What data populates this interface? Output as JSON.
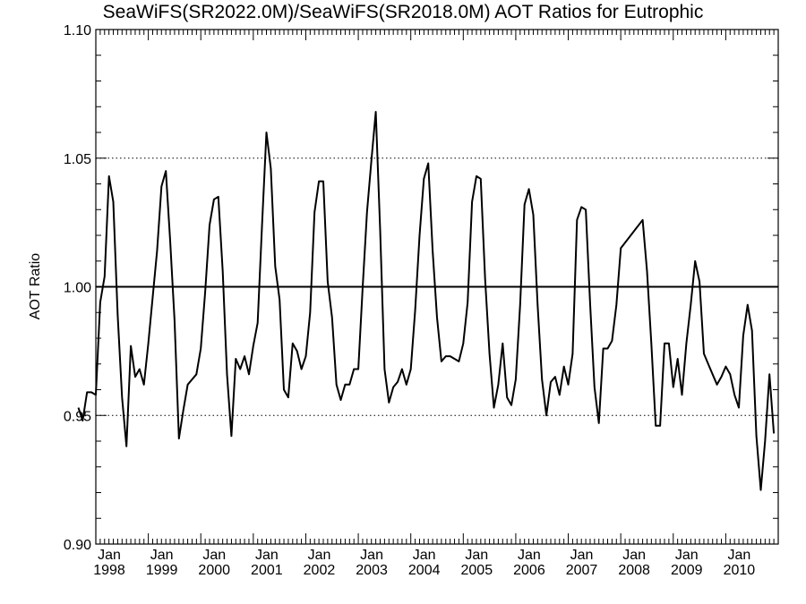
{
  "chart_data": {
    "type": "line",
    "title": "SeaWiFS(SR2022.0M)/SeaWiFS(SR2018.0M)  AOT Ratios for Eutrophic",
    "xlabel": "",
    "ylabel": "AOT Ratio",
    "ylim": [
      0.9,
      1.1
    ],
    "y_ticks": [
      "0.90",
      "0.95",
      "1.00",
      "1.05",
      "1.10"
    ],
    "x_range": [
      1998.0,
      2011.0
    ],
    "x_ticks": [
      {
        "month": "Jan",
        "year": "1998"
      },
      {
        "month": "Jan",
        "year": "1999"
      },
      {
        "month": "Jan",
        "year": "2000"
      },
      {
        "month": "Jan",
        "year": "2001"
      },
      {
        "month": "Jan",
        "year": "2002"
      },
      {
        "month": "Jan",
        "year": "2003"
      },
      {
        "month": "Jan",
        "year": "2004"
      },
      {
        "month": "Jan",
        "year": "2005"
      },
      {
        "month": "Jan",
        "year": "2006"
      },
      {
        "month": "Jan",
        "year": "2007"
      },
      {
        "month": "Jan",
        "year": "2008"
      },
      {
        "month": "Jan",
        "year": "2009"
      },
      {
        "month": "Jan",
        "year": "2010"
      }
    ],
    "reference_lines": [
      {
        "y": 1.0,
        "style": "solid"
      },
      {
        "y": 1.05,
        "style": "dotted"
      },
      {
        "y": 0.95,
        "style": "dotted"
      }
    ],
    "grid": false,
    "series": [
      {
        "x": [
          "1997-09",
          "1997-10",
          "1997-11",
          "1997-12",
          "1998-01",
          "1998-02",
          "1998-03",
          "1998-04",
          "1998-05",
          "1998-06",
          "1998-07",
          "1998-08",
          "1998-09",
          "1998-10",
          "1998-11",
          "1998-12",
          "1999-01",
          "1999-02",
          "1999-03",
          "1999-04",
          "1999-05",
          "1999-06",
          "1999-07",
          "1999-08",
          "1999-09",
          "1999-10",
          "1999-11",
          "1999-12",
          "2000-01",
          "2000-02",
          "2000-03",
          "2000-04",
          "2000-05",
          "2000-06",
          "2000-07",
          "2000-08",
          "2000-09",
          "2000-10",
          "2000-11",
          "2000-12",
          "2001-01",
          "2001-02",
          "2001-03",
          "2001-04",
          "2001-05",
          "2001-06",
          "2001-07",
          "2001-08",
          "2001-09",
          "2001-10",
          "2001-11",
          "2001-12",
          "2002-01",
          "2002-02",
          "2002-03",
          "2002-04",
          "2002-05",
          "2002-06",
          "2002-07",
          "2002-08",
          "2002-09",
          "2002-10",
          "2002-11",
          "2002-12",
          "2003-01",
          "2003-02",
          "2003-03",
          "2003-04",
          "2003-05",
          "2003-06",
          "2003-07",
          "2003-08",
          "2003-09",
          "2003-10",
          "2003-11",
          "2003-12",
          "2004-01",
          "2004-02",
          "2004-03",
          "2004-04",
          "2004-05",
          "2004-06",
          "2004-07",
          "2004-08",
          "2004-09",
          "2004-10",
          "2004-11",
          "2004-12",
          "2005-01",
          "2005-02",
          "2005-03",
          "2005-04",
          "2005-05",
          "2005-06",
          "2005-07",
          "2005-08",
          "2005-09",
          "2005-10",
          "2005-11",
          "2005-12",
          "2006-01",
          "2006-02",
          "2006-03",
          "2006-04",
          "2006-05",
          "2006-06",
          "2006-07",
          "2006-08",
          "2006-09",
          "2006-10",
          "2006-11",
          "2006-12",
          "2007-01",
          "2007-02",
          "2007-03",
          "2007-04",
          "2007-05",
          "2007-06",
          "2007-07",
          "2007-08",
          "2007-09",
          "2007-10",
          "2007-11",
          "2007-12",
          "2008-01",
          "2008-06",
          "2008-07",
          "2008-08",
          "2008-09",
          "2008-10",
          "2008-11",
          "2008-12",
          "2009-01",
          "2009-02",
          "2009-03",
          "2009-04",
          "2009-05",
          "2009-06",
          "2009-07",
          "2009-08",
          "2009-09",
          "2009-10",
          "2009-11",
          "2009-12",
          "2010-01",
          "2010-02",
          "2010-03",
          "2010-04",
          "2010-05",
          "2010-06",
          "2010-07",
          "2010-08",
          "2010-09",
          "2010-10",
          "2010-11",
          "2010-12"
        ],
        "y": [
          0.953,
          0.948,
          0.959,
          0.959,
          0.958,
          0.994,
          1.004,
          1.043,
          1.033,
          0.989,
          0.957,
          0.938,
          0.977,
          0.965,
          0.968,
          0.962,
          0.978,
          0.996,
          1.014,
          1.039,
          1.045,
          1.018,
          0.987,
          0.941,
          0.952,
          0.962,
          0.964,
          0.966,
          0.976,
          0.998,
          1.024,
          1.034,
          1.035,
          1.006,
          0.966,
          0.942,
          0.972,
          0.968,
          0.973,
          0.966,
          0.977,
          0.986,
          1.024,
          1.06,
          1.046,
          1.008,
          0.995,
          0.96,
          0.957,
          0.978,
          0.975,
          0.968,
          0.973,
          0.99,
          1.029,
          1.041,
          1.041,
          1.002,
          0.988,
          0.962,
          0.956,
          0.962,
          0.962,
          0.968,
          0.968,
          1.0,
          1.029,
          1.049,
          1.068,
          1.022,
          0.968,
          0.955,
          0.961,
          0.963,
          0.968,
          0.962,
          0.968,
          0.991,
          1.02,
          1.042,
          1.048,
          1.014,
          0.988,
          0.971,
          0.973,
          0.973,
          0.972,
          0.971,
          0.978,
          0.994,
          1.033,
          1.043,
          1.042,
          1.003,
          0.974,
          0.953,
          0.962,
          0.978,
          0.957,
          0.954,
          0.964,
          0.993,
          1.032,
          1.038,
          1.028,
          0.993,
          0.964,
          0.95,
          0.963,
          0.965,
          0.958,
          0.969,
          0.962,
          0.974,
          1.026,
          1.031,
          1.03,
          0.993,
          0.961,
          0.947,
          0.976,
          0.976,
          0.979,
          0.993,
          1.015,
          1.026,
          1.006,
          0.978,
          0.946,
          0.946,
          0.978,
          0.978,
          0.961,
          0.972,
          0.958,
          0.978,
          0.993,
          1.01,
          1.002,
          0.974,
          0.97,
          0.966,
          0.962,
          0.965,
          0.969,
          0.966,
          0.958,
          0.953,
          0.981,
          0.993,
          0.983,
          0.942,
          0.921,
          0.94,
          0.966,
          0.943
        ]
      }
    ]
  }
}
